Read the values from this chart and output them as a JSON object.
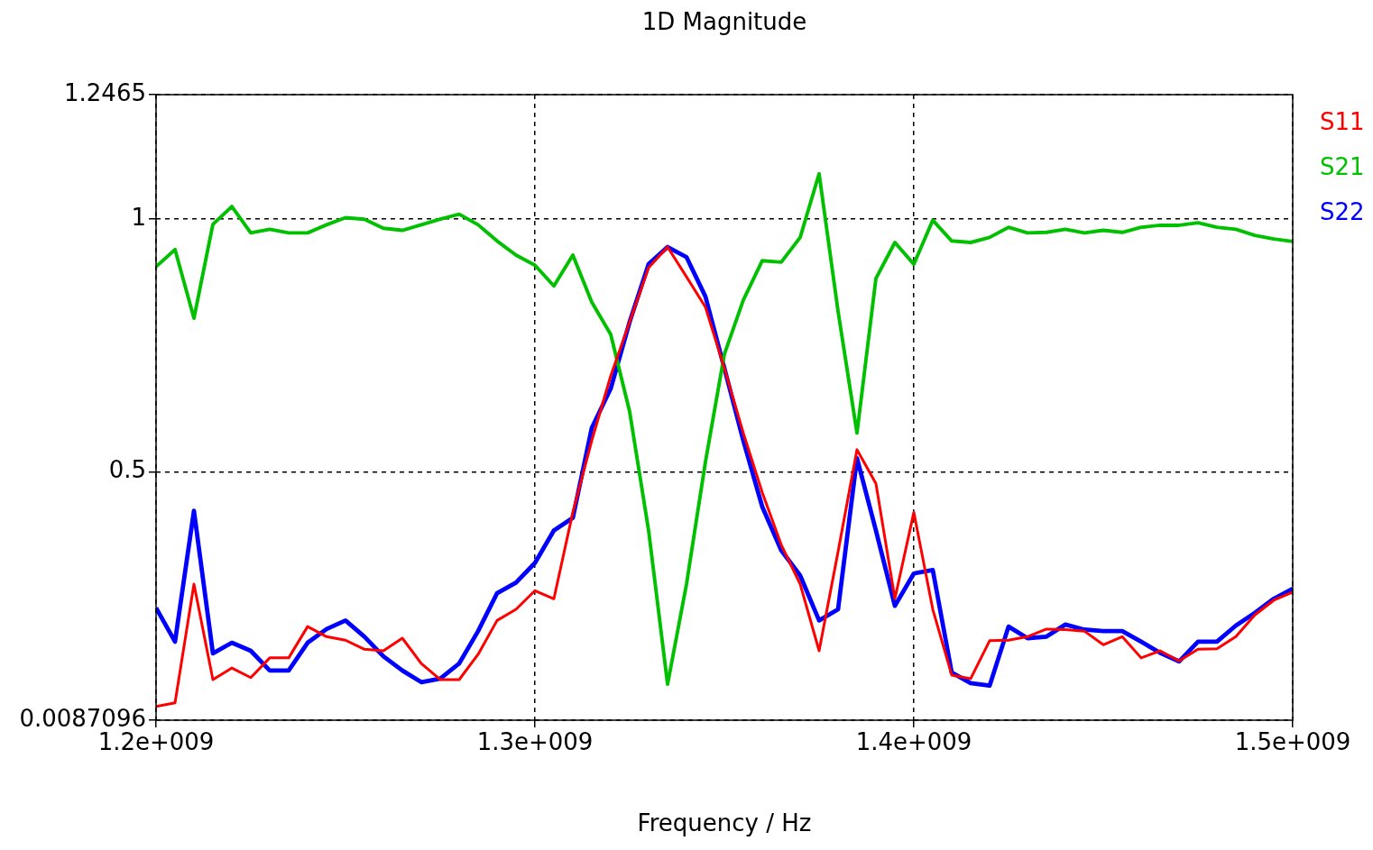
{
  "chart_data": {
    "type": "line",
    "title": "1D Magnitude",
    "xlabel": "Frequency / Hz",
    "x": [
      1200000000,
      1205000000,
      1210000000,
      1215000000,
      1220000000,
      1225000000,
      1230000000,
      1235000000,
      1240000000,
      1245000000,
      1250000000,
      1255000000,
      1260000000,
      1265000000,
      1270000000,
      1275000000,
      1280000000,
      1285000000,
      1290000000,
      1295000000,
      1300000000,
      1305000000,
      1310000000,
      1315000000,
      1320000000,
      1325000000,
      1330000000,
      1335000000,
      1340000000,
      1345000000,
      1350000000,
      1355000000,
      1360000000,
      1365000000,
      1370000000,
      1375000000,
      1380000000,
      1385000000,
      1390000000,
      1395000000,
      1400000000,
      1405000000,
      1410000000,
      1415000000,
      1420000000,
      1425000000,
      1430000000,
      1435000000,
      1440000000,
      1445000000,
      1450000000,
      1455000000,
      1460000000,
      1465000000,
      1470000000,
      1475000000,
      1480000000,
      1485000000,
      1490000000,
      1495000000,
      1500000000
    ],
    "series": [
      {
        "name": "S11",
        "color": "#ff0000",
        "values": [
          0.036,
          0.043,
          0.278,
          0.089,
          0.112,
          0.093,
          0.132,
          0.132,
          0.194,
          0.174,
          0.167,
          0.149,
          0.146,
          0.171,
          0.121,
          0.089,
          0.089,
          0.139,
          0.206,
          0.228,
          0.265,
          0.249,
          0.42,
          0.562,
          0.69,
          0.797,
          0.904,
          0.945,
          0.886,
          0.826,
          0.705,
          0.577,
          0.459,
          0.356,
          0.278,
          0.146,
          0.342,
          0.544,
          0.477,
          0.249,
          0.42,
          0.228,
          0.098,
          0.091,
          0.166,
          0.167,
          0.174,
          0.189,
          0.188,
          0.185,
          0.158,
          0.174,
          0.132,
          0.146,
          0.126,
          0.149,
          0.15,
          0.174,
          0.217,
          0.246,
          0.262
        ]
      },
      {
        "name": "S21",
        "color": "#00c000",
        "values": [
          0.906,
          0.94,
          0.804,
          0.99,
          1.025,
          0.973,
          0.98,
          0.973,
          0.973,
          0.989,
          1.003,
          1.0,
          0.982,
          0.978,
          0.989,
          1.0,
          1.01,
          0.989,
          0.957,
          0.929,
          0.909,
          0.868,
          0.929,
          0.836,
          0.772,
          0.619,
          0.384,
          0.08,
          0.278,
          0.52,
          0.733,
          0.84,
          0.918,
          0.915,
          0.964,
          1.09,
          0.818,
          0.577,
          0.883,
          0.954,
          0.911,
          0.998,
          0.957,
          0.954,
          0.964,
          0.984,
          0.973,
          0.974,
          0.98,
          0.973,
          0.978,
          0.974,
          0.984,
          0.988,
          0.988,
          0.993,
          0.984,
          0.98,
          0.968,
          0.961,
          0.956
        ]
      },
      {
        "name": "S22",
        "color": "#0000ff",
        "values": [
          0.231,
          0.164,
          0.423,
          0.141,
          0.162,
          0.146,
          0.107,
          0.107,
          0.162,
          0.189,
          0.206,
          0.174,
          0.135,
          0.107,
          0.084,
          0.091,
          0.121,
          0.185,
          0.26,
          0.281,
          0.32,
          0.384,
          0.409,
          0.587,
          0.665,
          0.797,
          0.911,
          0.945,
          0.925,
          0.847,
          0.705,
          0.562,
          0.431,
          0.345,
          0.295,
          0.206,
          0.228,
          0.527,
          0.384,
          0.235,
          0.299,
          0.306,
          0.103,
          0.082,
          0.077,
          0.194,
          0.171,
          0.174,
          0.198,
          0.188,
          0.185,
          0.185,
          0.164,
          0.142,
          0.125,
          0.164,
          0.164,
          0.196,
          0.221,
          0.249,
          0.269
        ]
      }
    ],
    "xlim": [
      1200000000,
      1500000000
    ],
    "xticks": [
      {
        "value": 1200000000,
        "label": "1.2e+009"
      },
      {
        "value": 1300000000,
        "label": "1.3e+009"
      },
      {
        "value": 1400000000,
        "label": "1.4e+009"
      },
      {
        "value": 1500000000,
        "label": "1.5e+009"
      }
    ],
    "ylim": [
      0.0087096,
      1.2465
    ],
    "yticks": [
      0.0087096,
      0.5,
      1,
      1.2465
    ],
    "grid": true,
    "legend": "right",
    "marker": "none",
    "line_style": "solid"
  }
}
